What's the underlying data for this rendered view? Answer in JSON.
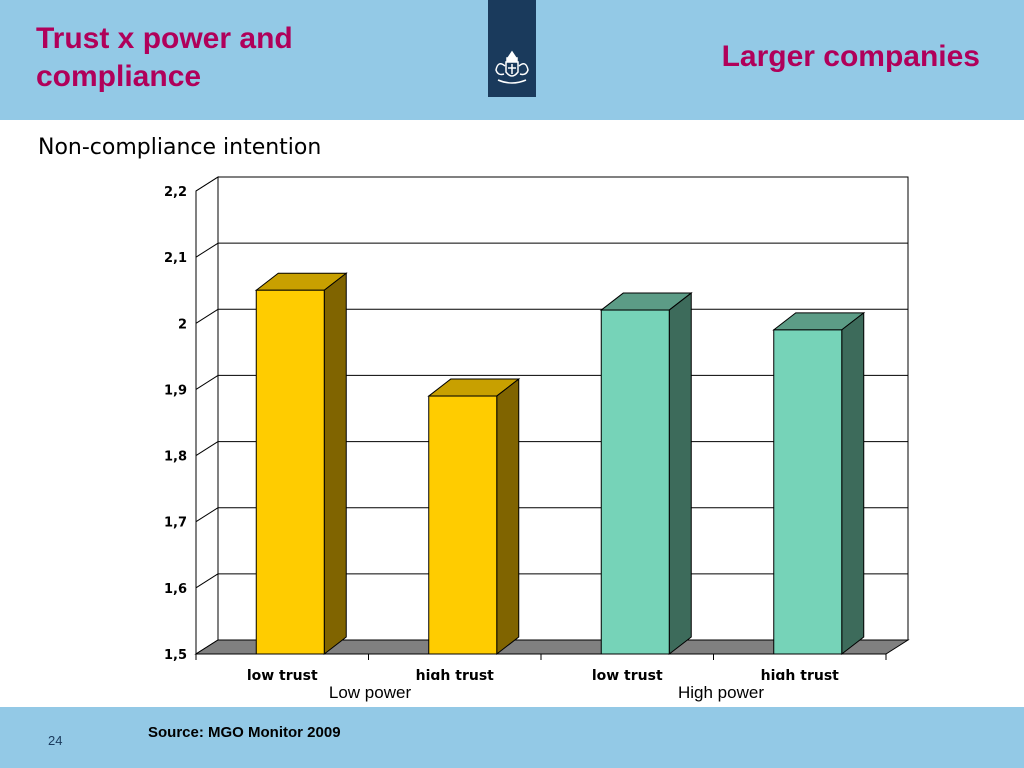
{
  "slide": {
    "title": "Trust x power and compliance",
    "right_title": "Larger companies",
    "subtitle": "Non-compliance intention",
    "source": "Source: MGO Monitor 2009",
    "page_number": "24"
  },
  "logo": {
    "icon": "royal-coat-of-arms-icon",
    "color": "#1a3a5c"
  },
  "colors": {
    "band": "#93c9e6",
    "title": "#b0005a",
    "gold_face": "#ffcc00",
    "gold_top": "#c8a000",
    "gold_side": "#806400",
    "teal_face": "#76d3b8",
    "teal_top": "#5c9c86",
    "teal_side": "#3d6b5b",
    "floor": "#808080"
  },
  "chart_data": {
    "type": "bar",
    "title": "",
    "categories": [
      "low trust",
      "high trust",
      "low trust",
      "high trust"
    ],
    "groups": [
      "Low power",
      "High power"
    ],
    "values": [
      2.05,
      1.89,
      2.02,
      1.99
    ],
    "bar_colors": [
      "gold",
      "gold",
      "teal",
      "teal"
    ],
    "ylim": [
      1.5,
      2.2
    ],
    "yticks": [
      "1,5",
      "1,6",
      "1,7",
      "1,8",
      "1,9",
      "2",
      "2,1",
      "2,2"
    ],
    "grid": true,
    "three_d": true
  }
}
